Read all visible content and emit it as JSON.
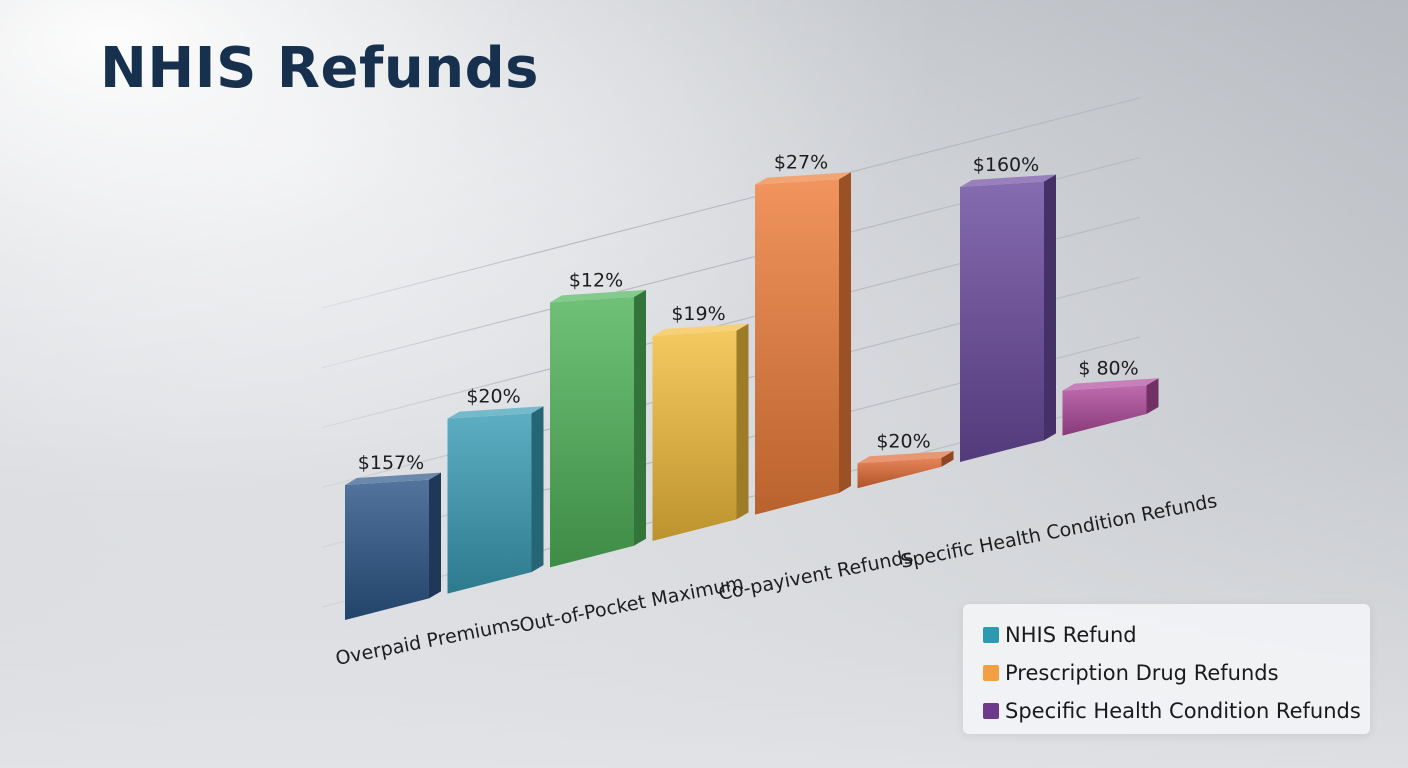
{
  "title": "NHIS Refunds",
  "chart_data": {
    "type": "bar",
    "title": "NHIS Refunds",
    "categories": [
      "Overpaid Premiums",
      "Out-of-Pocket Maximum",
      "Co-payivent Refunds",
      "Specific Health Condition Refunds"
    ],
    "bars": [
      {
        "label": "$157%",
        "value": 157,
        "color": "#2c5688"
      },
      {
        "label": "$20%",
        "value": 20,
        "color": "#3a9cb5"
      },
      {
        "label": "$12%",
        "value": 12,
        "color": "#4fb35a"
      },
      {
        "label": "$19%",
        "value": 19,
        "color": "#f2bd3c"
      },
      {
        "label": "$27%",
        "value": 27,
        "color": "#ee7d3a"
      },
      {
        "label": "$20%",
        "value": 20,
        "color": "#e06a35"
      },
      {
        "label": "$160%",
        "value": 160,
        "color": "#6a4a9e"
      },
      {
        "label": "$ 80%",
        "value": 80,
        "color": "#b04a9c"
      }
    ],
    "legend": [
      {
        "label": "NHIS Refund",
        "color": "#2b9bb0"
      },
      {
        "label": "Prescription Drug Refunds",
        "color": "#f2a043"
      },
      {
        "label": "Specific Health Condition Refunds",
        "color": "#6e3b8c"
      }
    ],
    "legend_position": "bottom-right",
    "grid": true
  }
}
